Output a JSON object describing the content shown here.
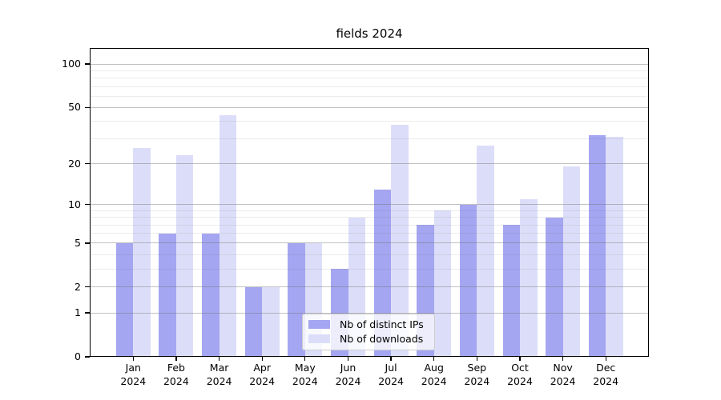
{
  "figure": {
    "title": "fields 2024"
  },
  "chart_data": {
    "type": "bar",
    "title": "fields 2024",
    "x_tick_months": [
      "Jan",
      "Feb",
      "Mar",
      "Apr",
      "May",
      "Jun",
      "Jul",
      "Aug",
      "Sep",
      "Oct",
      "Nov",
      "Dec"
    ],
    "x_tick_year": "2024",
    "series": [
      {
        "name": "Nb of distinct IPs",
        "color": "#a4a6f1",
        "values": [
          5,
          6,
          6,
          2,
          5,
          3,
          13,
          7,
          10,
          7,
          8,
          32
        ]
      },
      {
        "name": "Nb of downloads",
        "color": "#dcdef9",
        "values": [
          26,
          23,
          44,
          2,
          5,
          8,
          38,
          9,
          27,
          11,
          19,
          31
        ]
      }
    ],
    "y_axis": {
      "scale": "log1p",
      "ticks": [
        0,
        1,
        2,
        5,
        10,
        20,
        50,
        100
      ],
      "minor_gridlines": [
        3,
        4,
        6,
        7,
        8,
        9,
        30,
        40,
        60,
        70,
        80,
        90
      ],
      "ylim": [
        0,
        127
      ]
    },
    "grid": {
      "major": true,
      "minor": true,
      "drawn_above_bars": true
    },
    "legend": {
      "position": "bottom-center"
    },
    "colors": {
      "frame": "#000000",
      "major_grid": "#c8c8c8",
      "minor_grid": "#ededed"
    }
  }
}
